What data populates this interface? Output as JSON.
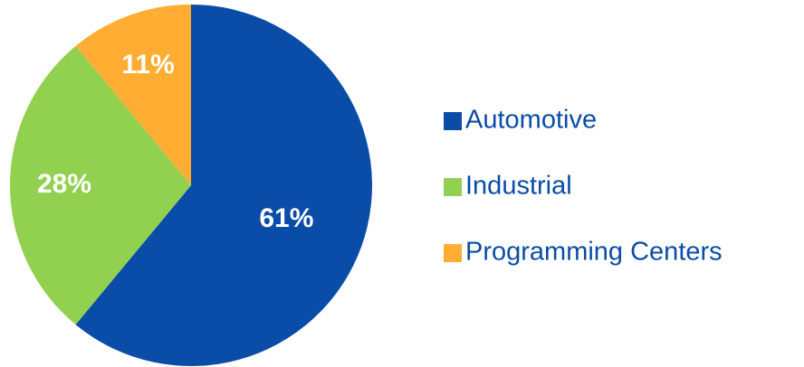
{
  "chart_data": {
    "type": "pie",
    "categories": [
      "Automotive",
      "Industrial",
      "Programming Centers"
    ],
    "values": [
      61,
      28,
      11
    ],
    "value_labels": [
      "61%",
      "28%",
      "11%"
    ],
    "colors": [
      "#0a4da8",
      "#92d050",
      "#ffad33"
    ],
    "legend": "right"
  }
}
